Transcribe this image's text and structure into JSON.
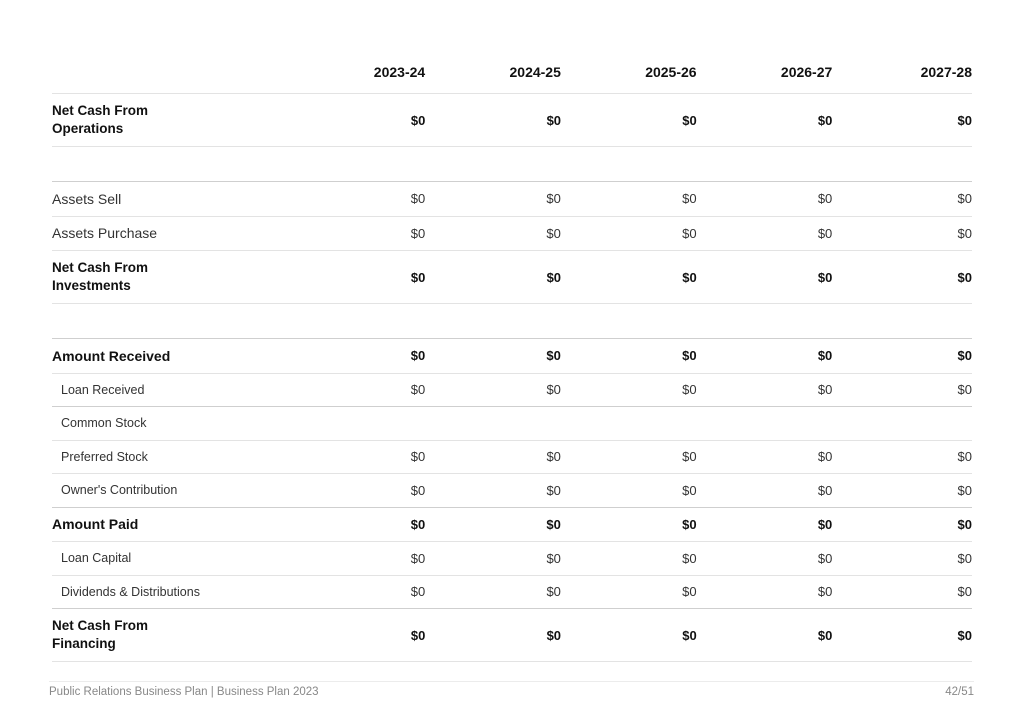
{
  "table": {
    "years": [
      "2023-24",
      "2024-25",
      "2025-26",
      "2026-27",
      "2027-28"
    ],
    "net_cash_operations": {
      "label": "Net Cash From Operations",
      "values": [
        "$0",
        "$0",
        "$0",
        "$0",
        "$0"
      ]
    },
    "assets_sell": {
      "label": "Assets Sell",
      "values": [
        "$0",
        "$0",
        "$0",
        "$0",
        "$0"
      ]
    },
    "assets_purchase": {
      "label": "Assets Purchase",
      "values": [
        "$0",
        "$0",
        "$0",
        "$0",
        "$0"
      ]
    },
    "net_cash_investments": {
      "label": "Net Cash From Investments",
      "values": [
        "$0",
        "$0",
        "$0",
        "$0",
        "$0"
      ]
    },
    "amount_received": {
      "label": "Amount Received",
      "values": [
        "$0",
        "$0",
        "$0",
        "$0",
        "$0"
      ]
    },
    "loan_received": {
      "label": "Loan Received",
      "values": [
        "$0",
        "$0",
        "$0",
        "$0",
        "$0"
      ]
    },
    "common_stock": {
      "label": "Common Stock",
      "values": [
        "",
        "",
        "",
        "",
        ""
      ]
    },
    "preferred_stock": {
      "label": "Preferred Stock",
      "values": [
        "$0",
        "$0",
        "$0",
        "$0",
        "$0"
      ]
    },
    "owners_contribution": {
      "label": "Owner's Contribution",
      "values": [
        "$0",
        "$0",
        "$0",
        "$0",
        "$0"
      ]
    },
    "amount_paid": {
      "label": "Amount Paid",
      "values": [
        "$0",
        "$0",
        "$0",
        "$0",
        "$0"
      ]
    },
    "loan_capital": {
      "label": "Loan Capital",
      "values": [
        "$0",
        "$0",
        "$0",
        "$0",
        "$0"
      ]
    },
    "dividends": {
      "label": "Dividends & Distributions",
      "values": [
        "$0",
        "$0",
        "$0",
        "$0",
        "$0"
      ]
    },
    "net_cash_financing": {
      "label": "Net Cash From Financing",
      "values": [
        "$0",
        "$0",
        "$0",
        "$0",
        "$0"
      ]
    }
  },
  "footer": {
    "title": "Public Relations Business Plan | Business Plan 2023",
    "page": "42/51"
  }
}
